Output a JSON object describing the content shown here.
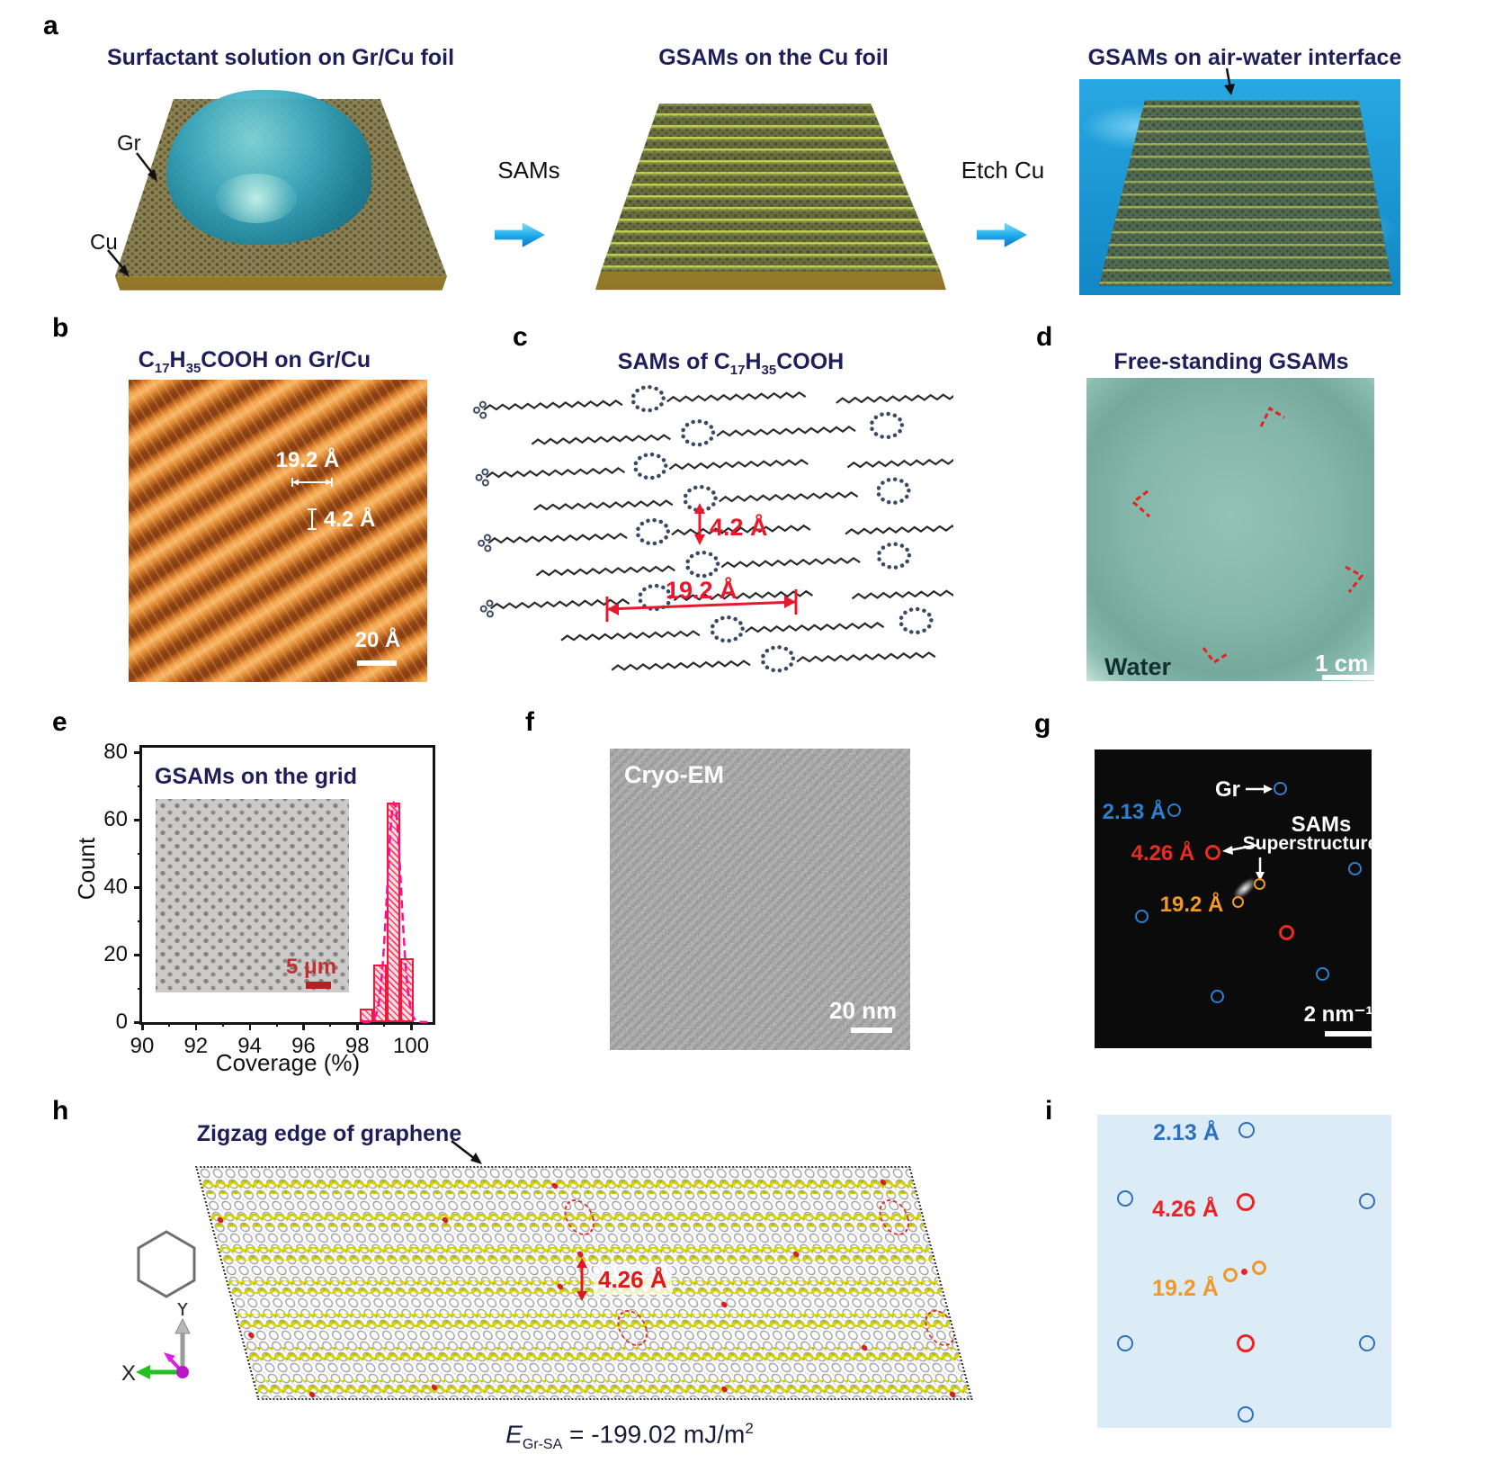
{
  "panel_labels": {
    "a": "a",
    "b": "b",
    "c": "c",
    "d": "d",
    "e": "e",
    "f": "f",
    "g": "g",
    "h": "h",
    "i": "i"
  },
  "colors": {
    "title_navy": "#1e1e5a",
    "spot_blue": "#2e6fbe",
    "spot_red": "#ee2222",
    "spot_orange": "#f0982a",
    "bar_red": "#ff2a50",
    "fit_magenta": "#ff1090",
    "stm_orange": "#d4791f",
    "water_teal": "#84b6a9",
    "sim_yellow": "#d6d600"
  },
  "panel_a": {
    "step1_title": "Surfactant solution on Gr/Cu foil",
    "step2_title": "GSAMs on the Cu foil",
    "step3_title": "GSAMs on air-water interface",
    "arrow1_label": "SAMs",
    "arrow2_label": "Etch Cu",
    "gr_label": "Gr",
    "cu_label": "Cu"
  },
  "panel_b": {
    "title": {
      "c": "C",
      "c_sub": "17",
      "h": "H",
      "h_sub": "35",
      "tail": "COOH",
      "suffix": " on Gr/Cu"
    },
    "d1": "19.2 Å",
    "d2": "4.2 Å",
    "scalebar": "20 Å"
  },
  "panel_c": {
    "title_prefix": "SAMs of ",
    "title": {
      "c": "C",
      "c_sub": "17",
      "h": "H",
      "h_sub": "35",
      "tail": "COOH"
    },
    "d_vert": "4.2 Å",
    "d_horiz": "19.2 Å"
  },
  "panel_d": {
    "title": "Free-standing GSAMs",
    "water_label": "Water",
    "scalebar": "1 cm"
  },
  "panel_e": {
    "inset_title": "GSAMs on the grid",
    "inset_scalebar": "5 μm"
  },
  "panel_f": {
    "label": "Cryo-EM",
    "scalebar": "20 nm"
  },
  "panel_g": {
    "gr": "Gr",
    "d1": "2.13 Å",
    "d2": "4.26 Å",
    "d3": "19.2 Å",
    "sams_line1": "SAMs",
    "sams_line2": "Superstructure",
    "scalebar": "2 nm⁻¹"
  },
  "panel_h": {
    "edge_label": "Zigzag edge of graphene",
    "distance": "4.26 Å",
    "axis_x": "X",
    "axis_y": "Y",
    "energy_E": "E",
    "energy_sub": "Gr-SA",
    "energy_val": " = -199.02 mJ/m",
    "energy_sup": "2"
  },
  "panel_i": {
    "d1": "2.13 Å",
    "d2": "4.26 Å",
    "d3": "19.2 Å"
  },
  "chart_data": {
    "type": "bar",
    "title": "GSAMs on the grid",
    "xlabel": "Coverage (%)",
    "ylabel": "Count",
    "xlim": [
      90,
      100.8
    ],
    "ylim": [
      0,
      80
    ],
    "x_ticks": [
      90,
      92,
      94,
      96,
      98,
      100
    ],
    "x_minor": [
      91,
      93,
      95,
      97,
      99
    ],
    "y_ticks": [
      0,
      20,
      40,
      60,
      80
    ],
    "y_minor": [
      10,
      30,
      50,
      70
    ],
    "bin_edges": [
      98.1,
      98.6,
      99.1,
      99.6,
      100.1
    ],
    "values": [
      4,
      17,
      65,
      19
    ],
    "fit": {
      "type": "gaussian",
      "center": 99.37,
      "sigma": 0.26,
      "amplitude": 65
    },
    "grid": false,
    "legend": "none"
  }
}
